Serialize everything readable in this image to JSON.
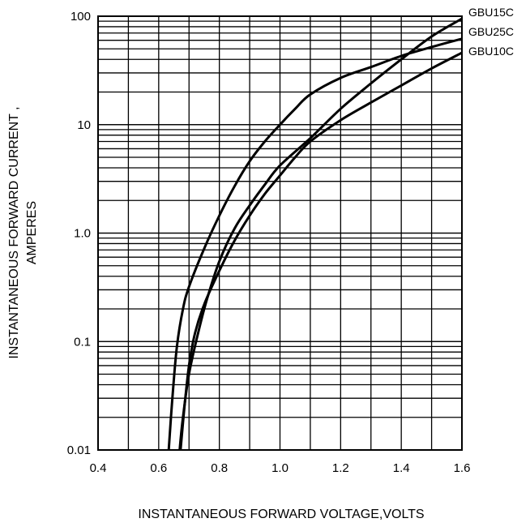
{
  "chart_data": {
    "type": "line",
    "title": "",
    "xlabel": "INSTANTANEOUS FORWARD VOLTAGE,VOLTS",
    "ylabel_lines": [
      "INSTANTANEOUS  FORWARD  CURRENT ,",
      "AMPERES"
    ],
    "x_scale": "linear",
    "y_scale": "log",
    "xlim": [
      0.4,
      1.6
    ],
    "ylim": [
      0.01,
      100
    ],
    "x_ticks": [
      "0.4",
      "0.6",
      "0.8",
      "1.0",
      "1.2",
      "1.4",
      "1.6"
    ],
    "y_ticks": [
      "0.01",
      "0.1",
      "1.0",
      "10",
      "100"
    ],
    "grid": true,
    "legend": "labels at right end of curves",
    "series": [
      {
        "name": "GBU15C",
        "x": [
          0.669,
          0.68,
          0.7,
          0.73,
          0.76,
          0.8,
          0.85,
          0.9,
          0.95,
          1.0,
          1.1,
          1.2,
          1.3,
          1.4,
          1.5,
          1.6
        ],
        "y": [
          0.01,
          0.02,
          0.05,
          0.12,
          0.25,
          0.55,
          1.1,
          1.8,
          2.8,
          4.2,
          7.5,
          14,
          24,
          40,
          65,
          95
        ]
      },
      {
        "name": "GBU25C",
        "x": [
          0.633,
          0.645,
          0.66,
          0.68,
          0.7,
          0.75,
          0.8,
          0.85,
          0.9,
          0.95,
          1.0,
          1.05,
          1.1,
          1.2,
          1.3,
          1.4,
          1.5,
          1.6
        ],
        "y": [
          0.01,
          0.03,
          0.09,
          0.2,
          0.32,
          0.72,
          1.45,
          2.7,
          4.6,
          7.0,
          10,
          14,
          19,
          27,
          34,
          43,
          52,
          62
        ]
      },
      {
        "name": "GBU10C",
        "x": [
          0.672,
          0.685,
          0.7,
          0.72,
          0.75,
          0.8,
          0.85,
          0.9,
          0.95,
          1.0,
          1.05,
          1.1,
          1.2,
          1.3,
          1.4,
          1.5,
          1.6
        ],
        "y": [
          0.01,
          0.025,
          0.06,
          0.12,
          0.22,
          0.45,
          0.85,
          1.45,
          2.3,
          3.4,
          5.0,
          7.0,
          11,
          16,
          23,
          33,
          46
        ]
      }
    ]
  }
}
